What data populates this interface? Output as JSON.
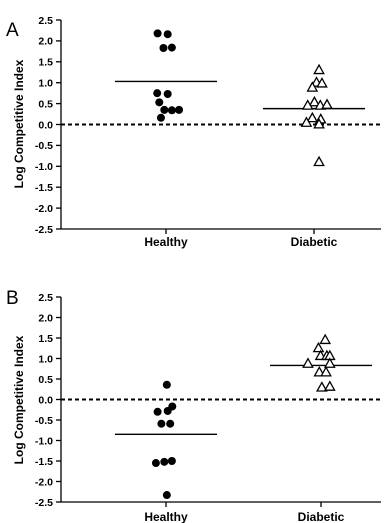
{
  "chart_data": [
    {
      "panel": "A",
      "type": "scatter",
      "ylabel": "Log Competitive Index",
      "ylim": [
        -2.5,
        2.5
      ],
      "yticks": [
        "2.5",
        "2.0",
        "1.5",
        "1.0",
        "0.5",
        "0.0",
        "-0.5",
        "-1.0",
        "-1.5",
        "-2.0",
        "-2.5"
      ],
      "categories": [
        "Healthy",
        "Diabetic"
      ],
      "reference_line": 0,
      "series": [
        {
          "category": "Healthy",
          "marker": "filled-circle",
          "mean": 1.03,
          "points": [
            {
              "x": -0.2,
              "y": 2.18
            },
            {
              "x": 0.04,
              "y": 2.16
            },
            {
              "x": -0.06,
              "y": 1.83
            },
            {
              "x": 0.14,
              "y": 1.84
            },
            {
              "x": -0.21,
              "y": 0.75
            },
            {
              "x": 0.04,
              "y": 0.73
            },
            {
              "x": -0.16,
              "y": 0.53
            },
            {
              "x": -0.04,
              "y": 0.35
            },
            {
              "x": 0.14,
              "y": 0.34
            },
            {
              "x": 0.31,
              "y": 0.35
            },
            {
              "x": -0.12,
              "y": 0.16
            }
          ]
        },
        {
          "category": "Diabetic",
          "marker": "open-triangle",
          "mean": 0.38,
          "points": [
            {
              "x": 0.12,
              "y": 1.3
            },
            {
              "x": 0.06,
              "y": 1.0
            },
            {
              "x": 0.19,
              "y": 0.98
            },
            {
              "x": -0.04,
              "y": 0.88
            },
            {
              "x": 0.01,
              "y": 0.53
            },
            {
              "x": -0.15,
              "y": 0.45
            },
            {
              "x": 0.15,
              "y": 0.45
            },
            {
              "x": 0.31,
              "y": 0.47
            },
            {
              "x": -0.04,
              "y": 0.15
            },
            {
              "x": 0.16,
              "y": 0.12
            },
            {
              "x": -0.18,
              "y": 0.04
            },
            {
              "x": 0.12,
              "y": 0.0
            },
            {
              "x": 0.12,
              "y": -0.9
            }
          ]
        }
      ]
    },
    {
      "panel": "B",
      "type": "scatter",
      "ylabel": "Log Competitive Index",
      "ylim": [
        -2.5,
        2.5
      ],
      "yticks": [
        "2.5",
        "2.0",
        "1.5",
        "1.0",
        "0.5",
        "0.0",
        "-0.5",
        "-1.0",
        "-1.5",
        "-2.0",
        "-2.5"
      ],
      "categories": [
        "Healthy",
        "Diabetic"
      ],
      "reference_line": 0,
      "series": [
        {
          "category": "Healthy",
          "marker": "filled-circle",
          "mean": -0.85,
          "points": [
            {
              "x": 0.02,
              "y": 0.36
            },
            {
              "x": -0.2,
              "y": -0.3
            },
            {
              "x": 0.04,
              "y": -0.28
            },
            {
              "x": 0.15,
              "y": -0.17
            },
            {
              "x": -0.11,
              "y": -0.59
            },
            {
              "x": 0.1,
              "y": -0.59
            },
            {
              "x": -0.24,
              "y": -1.55
            },
            {
              "x": -0.04,
              "y": -1.52
            },
            {
              "x": 0.14,
              "y": -1.5
            },
            {
              "x": 0.02,
              "y": -2.33
            }
          ]
        },
        {
          "category": "Diabetic",
          "marker": "open-triangle",
          "mean": 0.83,
          "points": [
            {
              "x": 0.1,
              "y": 1.45
            },
            {
              "x": -0.06,
              "y": 1.25
            },
            {
              "x": -0.01,
              "y": 1.06
            },
            {
              "x": 0.14,
              "y": 1.06
            },
            {
              "x": 0.21,
              "y": 1.06
            },
            {
              "x": -0.31,
              "y": 0.87
            },
            {
              "x": 0.21,
              "y": 0.87
            },
            {
              "x": -0.04,
              "y": 0.66
            },
            {
              "x": 0.12,
              "y": 0.66
            },
            {
              "x": 0.02,
              "y": 0.29
            },
            {
              "x": 0.21,
              "y": 0.31
            }
          ]
        }
      ]
    }
  ]
}
